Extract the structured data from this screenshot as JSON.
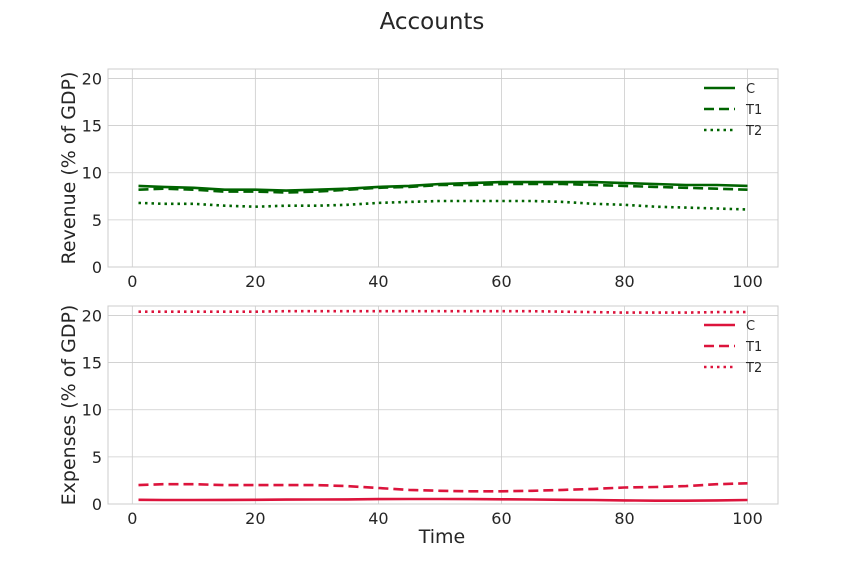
{
  "chart_data": {
    "title": "Accounts",
    "xlabel": "Time",
    "xlim": [
      -3.95,
      104.95
    ],
    "xticks": [
      0,
      20,
      40,
      60,
      80,
      100
    ],
    "grid": true,
    "legend_placement": "top-right",
    "panels": [
      {
        "type": "line",
        "ylabel": "Revenue (% of GDP)",
        "ylim": [
          0,
          21
        ],
        "yticks": [
          0,
          5,
          10,
          15,
          20
        ],
        "color": "#006400",
        "series": [
          {
            "name": "C",
            "style": "solid",
            "x": [
              1,
              5,
              10,
              15,
              20,
              25,
              30,
              35,
              40,
              45,
              50,
              55,
              60,
              65,
              70,
              75,
              80,
              85,
              90,
              95,
              100
            ],
            "values": [
              8.6,
              8.5,
              8.4,
              8.2,
              8.2,
              8.1,
              8.2,
              8.3,
              8.5,
              8.6,
              8.8,
              8.9,
              9.0,
              9.0,
              9.0,
              9.0,
              8.9,
              8.8,
              8.7,
              8.7,
              8.6
            ]
          },
          {
            "name": "T1",
            "style": "dashed",
            "x": [
              1,
              5,
              10,
              15,
              20,
              25,
              30,
              35,
              40,
              45,
              50,
              55,
              60,
              65,
              70,
              75,
              80,
              85,
              90,
              95,
              100
            ],
            "values": [
              8.2,
              8.3,
              8.2,
              8.0,
              8.0,
              7.9,
              8.0,
              8.2,
              8.4,
              8.5,
              8.7,
              8.7,
              8.8,
              8.8,
              8.8,
              8.7,
              8.6,
              8.5,
              8.4,
              8.3,
              8.2
            ]
          },
          {
            "name": "T2",
            "style": "dotted",
            "x": [
              1,
              5,
              10,
              15,
              20,
              25,
              30,
              35,
              40,
              45,
              50,
              55,
              60,
              65,
              70,
              75,
              80,
              85,
              90,
              95,
              100
            ],
            "values": [
              6.8,
              6.7,
              6.7,
              6.5,
              6.4,
              6.5,
              6.5,
              6.6,
              6.8,
              6.9,
              7.0,
              7.0,
              7.0,
              7.0,
              6.9,
              6.7,
              6.6,
              6.4,
              6.3,
              6.2,
              6.1
            ]
          }
        ]
      },
      {
        "type": "line",
        "ylabel": "Expenses (% of GDP)",
        "ylim": [
          0,
          21
        ],
        "yticks": [
          0,
          5,
          10,
          15,
          20
        ],
        "color": "#dc143c",
        "series": [
          {
            "name": "C",
            "style": "solid",
            "x": [
              1,
              5,
              10,
              15,
              20,
              25,
              30,
              35,
              40,
              45,
              50,
              55,
              60,
              65,
              70,
              75,
              80,
              85,
              90,
              95,
              100
            ],
            "values": [
              0.45,
              0.42,
              0.42,
              0.43,
              0.45,
              0.47,
              0.48,
              0.49,
              0.52,
              0.53,
              0.53,
              0.52,
              0.5,
              0.48,
              0.45,
              0.42,
              0.38,
              0.35,
              0.35,
              0.38,
              0.42
            ]
          },
          {
            "name": "T1",
            "style": "dashed",
            "x": [
              1,
              5,
              10,
              15,
              20,
              25,
              30,
              35,
              40,
              45,
              50,
              55,
              60,
              65,
              70,
              75,
              80,
              85,
              90,
              95,
              100
            ],
            "values": [
              2.0,
              2.1,
              2.1,
              2.0,
              2.0,
              2.0,
              2.0,
              1.9,
              1.7,
              1.5,
              1.4,
              1.35,
              1.35,
              1.4,
              1.5,
              1.6,
              1.75,
              1.8,
              1.9,
              2.1,
              2.2
            ]
          },
          {
            "name": "T2",
            "style": "dotted",
            "x": [
              1,
              5,
              10,
              15,
              20,
              25,
              30,
              35,
              40,
              45,
              50,
              55,
              60,
              65,
              70,
              75,
              80,
              85,
              90,
              95,
              100
            ],
            "values": [
              20.4,
              20.4,
              20.4,
              20.4,
              20.4,
              20.45,
              20.45,
              20.45,
              20.45,
              20.45,
              20.45,
              20.45,
              20.45,
              20.45,
              20.4,
              20.35,
              20.3,
              20.3,
              20.3,
              20.35,
              20.35
            ]
          }
        ]
      }
    ]
  }
}
